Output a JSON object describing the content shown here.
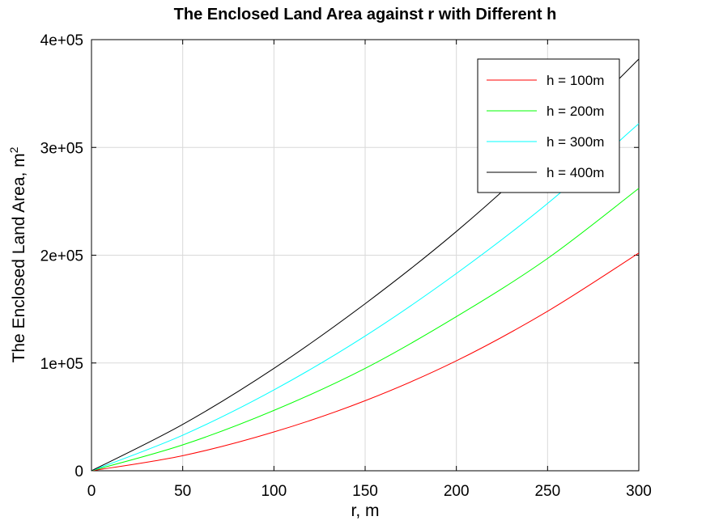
{
  "chart_data": {
    "type": "line",
    "title": "The Enclosed Land Area against r with Different h",
    "xlabel": "r, m",
    "ylabel": "The Enclosed Land Area, m",
    "ylabel_superscript": "2",
    "xlim": [
      0,
      300
    ],
    "ylim": [
      0,
      400000
    ],
    "xticks": [
      0,
      50,
      100,
      150,
      200,
      250,
      300
    ],
    "xtick_labels": [
      "0",
      "50",
      "100",
      "150",
      "200",
      "250",
      "300"
    ],
    "yticks": [
      0,
      100000,
      200000,
      300000,
      400000
    ],
    "ytick_labels": [
      "0",
      "1e+05",
      "2e+05",
      "3e+05",
      "4e+05"
    ],
    "grid": true,
    "legend_position": "top-right",
    "x": [
      0,
      50,
      100,
      150,
      200,
      250,
      300
    ],
    "series": [
      {
        "name": "h = 100m",
        "color": "#ff0000",
        "values": [
          0,
          14000,
          36000,
          65000,
          102000,
          148000,
          202000
        ]
      },
      {
        "name": "h = 200m",
        "color": "#00ff00",
        "values": [
          0,
          24000,
          56000,
          95000,
          143000,
          197000,
          262000
        ]
      },
      {
        "name": "h = 300m",
        "color": "#00ffff",
        "values": [
          0,
          33000,
          75000,
          125000,
          183000,
          248000,
          322000
        ]
      },
      {
        "name": "h = 400m",
        "color": "#000000",
        "values": [
          0,
          43000,
          95000,
          155000,
          222000,
          298000,
          382000
        ]
      }
    ]
  }
}
